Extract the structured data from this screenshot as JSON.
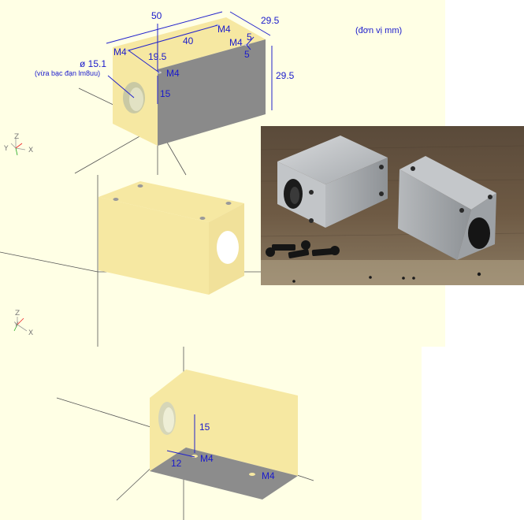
{
  "colors": {
    "background": "#ffffe5",
    "face_light": "#f6e8a2",
    "face_mid": "#e9d488",
    "face_shadow": "#8c8c8c",
    "annotation": "#1a1acc"
  },
  "views": {
    "top": {
      "unit_note": "(đơn vị mm)",
      "labels": {
        "length": "50",
        "height_right": "29.5",
        "depth": "29.5",
        "hole_spacing": "40",
        "edge_offset": "19.5",
        "side_offset_a": "5",
        "side_offset_b": "5",
        "screw_a": "M4",
        "screw_b": "M4",
        "screw_c": "M4",
        "screw_d": "M4",
        "bore": "ø 15.1",
        "bore_note": "(vừa bạc đạn lm8uu)",
        "hole_depth": "15"
      }
    },
    "bottom": {
      "labels": {
        "hole_depth": "15",
        "edge_offset": "12",
        "screw_a": "M4",
        "screw_b": "M4"
      }
    },
    "axes_letters": {
      "x": "X",
      "y": "Y",
      "z": "Z"
    }
  },
  "photo": {
    "subject": "two machined aluminium linear bearing blocks with black M4 socket screws"
  }
}
